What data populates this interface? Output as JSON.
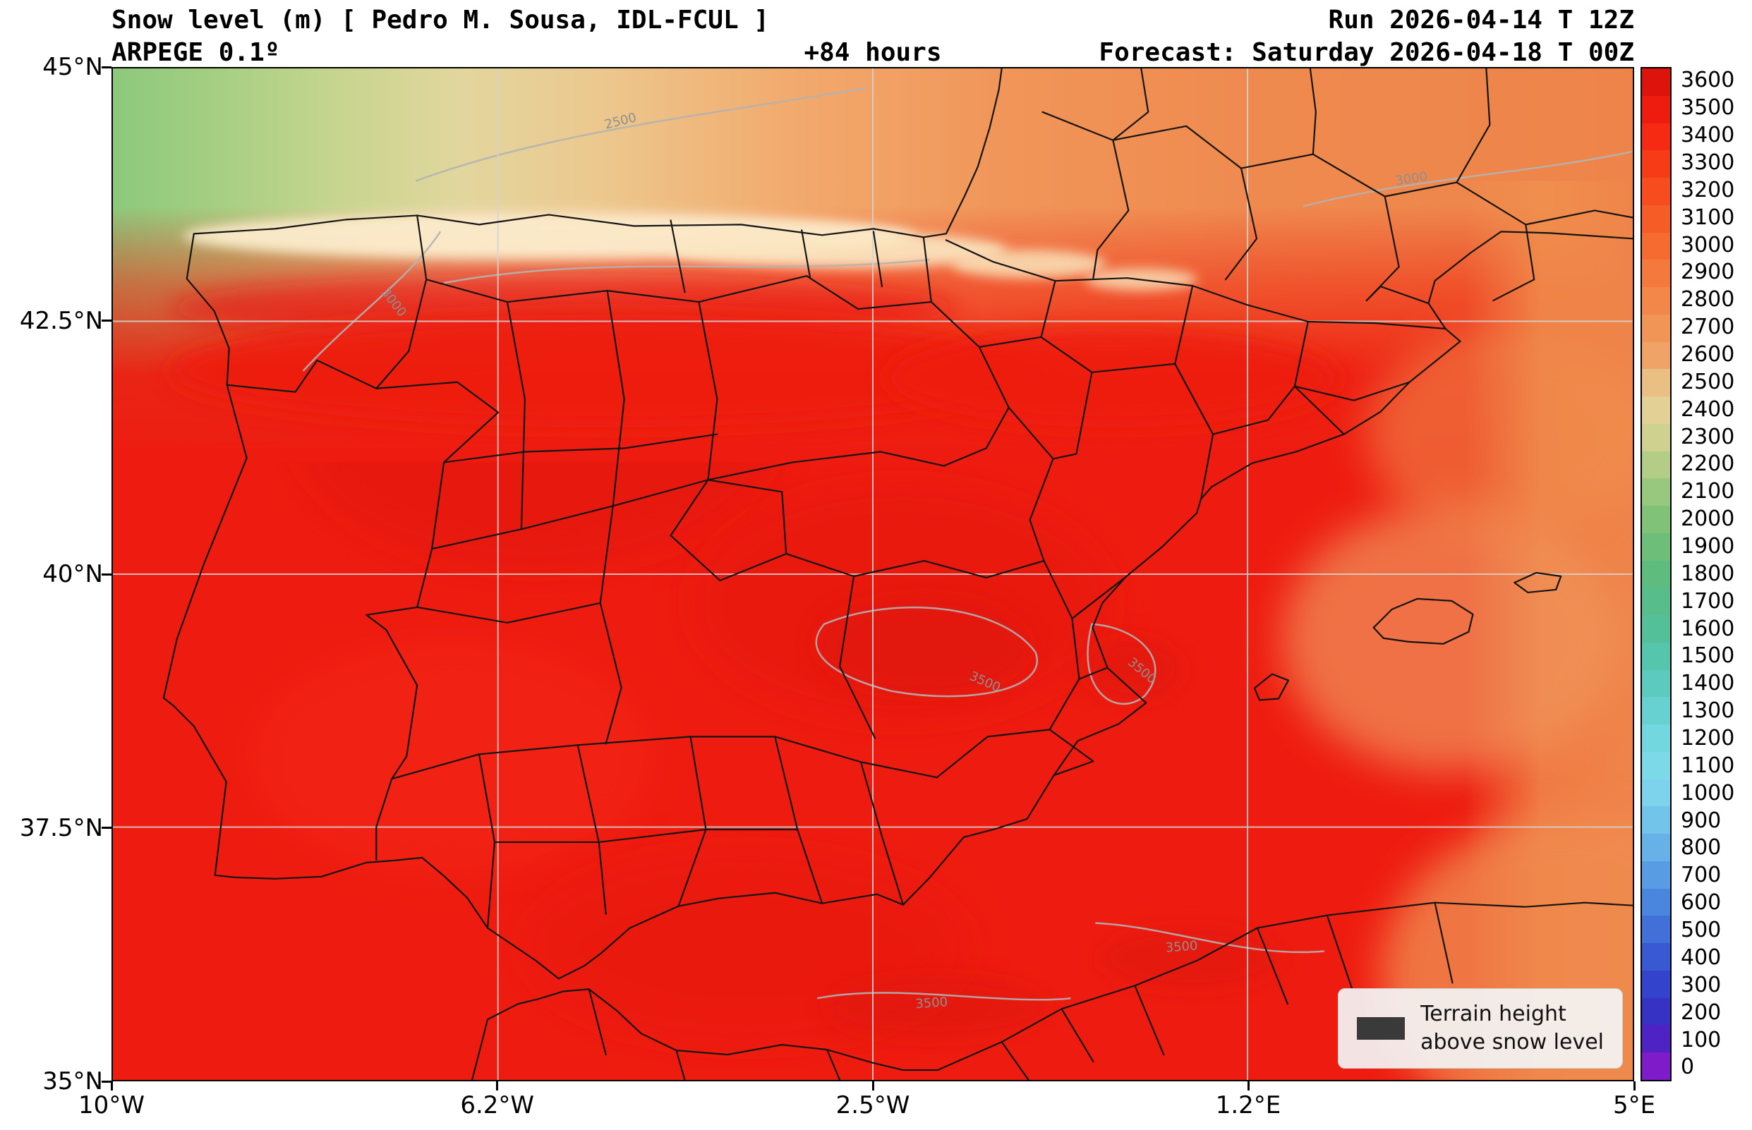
{
  "header": {
    "title": "Snow level (m) [ Pedro M. Sousa, IDL-FCUL ]",
    "model": "ARPEGE 0.1º",
    "lead_time": "+84 hours",
    "run": "Run 2026-04-14 T 12Z",
    "forecast": "Forecast: Saturday 2026-04-18 T 00Z"
  },
  "axes": {
    "x_ticks": [
      "10°W",
      "6.2°W",
      "2.5°W",
      "1.2°E",
      "5°E"
    ],
    "y_ticks": [
      "45°N",
      "42.5°N",
      "40°N",
      "37.5°N",
      "35°N"
    ]
  },
  "colorbar": {
    "unit": "m",
    "levels": [
      3600,
      3500,
      3400,
      3300,
      3200,
      3100,
      3000,
      2900,
      2800,
      2700,
      2600,
      2500,
      2400,
      2300,
      2200,
      2100,
      2000,
      1900,
      1800,
      1700,
      1600,
      1500,
      1400,
      1300,
      1200,
      1100,
      1000,
      900,
      800,
      700,
      600,
      500,
      400,
      300,
      200,
      100,
      0
    ],
    "colors": [
      "#dc140b",
      "#ee1c0f",
      "#f62a12",
      "#f73b17",
      "#f74c1e",
      "#f65c26",
      "#f56b30",
      "#f4793c",
      "#f28749",
      "#f19557",
      "#efa366",
      "#e9bf83",
      "#e2d094",
      "#cfd18f",
      "#b3cd86",
      "#97c87d",
      "#7fc278",
      "#6cbe78",
      "#5ebc7e",
      "#57bd8a",
      "#54c09a",
      "#55c5ac",
      "#5ccbbe",
      "#66d1d0",
      "#72d7de",
      "#7cdae8",
      "#7dd3ec",
      "#73c4ea",
      "#66b1e7",
      "#589ce3",
      "#4b86de",
      "#4170d8",
      "#3959d2",
      "#3343cb",
      "#3532c4",
      "#4f22c3",
      "#801bca"
    ]
  },
  "contour_labels": [
    "2500",
    "3000",
    "3000",
    "3500",
    "3500",
    "3500",
    "3500"
  ],
  "legend": {
    "line1": "Terrain height",
    "line2": "above snow level",
    "swatch_color": "#3a3a3a"
  },
  "field_palette": {
    "high_red": "#ee1c10",
    "orange_band": "#f0914f",
    "tan_band": "#e2d69e",
    "green_low": "#8cc97c",
    "cream_peaks": "#fbeccc",
    "contour_gray": "#b3b3b3"
  }
}
